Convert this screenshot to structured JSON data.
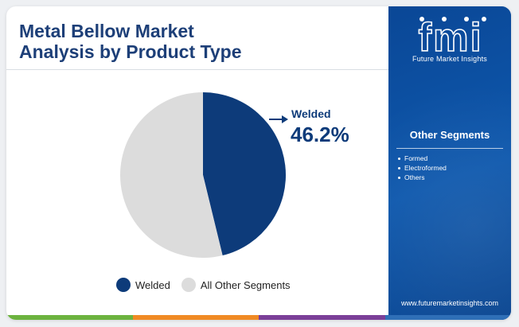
{
  "header": {
    "title_line1": "Metal Bellow Market",
    "title_line2": "Analysis by Product Type"
  },
  "chart_data": {
    "type": "pie",
    "slices": [
      {
        "label": "Welded",
        "value": 46.2,
        "color": "#0d3b7a"
      },
      {
        "label": "All Other Segments",
        "value": 53.8,
        "color": "#dcdcdc"
      }
    ],
    "callout": {
      "label": "Welded",
      "value_text": "46.2%"
    },
    "legend": [
      {
        "label": "Welded",
        "color": "#0d3b7a"
      },
      {
        "label": "All Other Segments",
        "color": "#dcdcdc"
      }
    ]
  },
  "sidebar": {
    "logo_text": "fmi",
    "logo_subtitle": "Future Market Insights",
    "others_title": "Other Segments",
    "others_items": [
      "Formed",
      "Electroformed",
      "Others"
    ],
    "website": "www.futuremarketinsights.com"
  },
  "colors": {
    "title": "#1d3f78",
    "sidebar": "#0d4c9a",
    "bottom_bar": [
      "#6cb33f",
      "#f08a24",
      "#7b3f98",
      "#2f6fb7"
    ]
  }
}
